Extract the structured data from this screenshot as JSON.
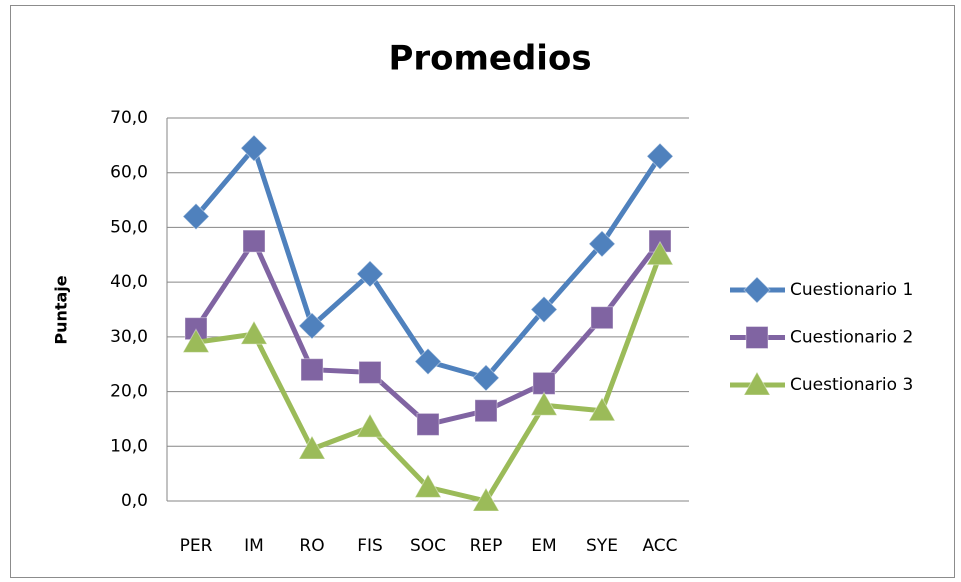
{
  "chart_data": {
    "type": "line",
    "title": "Promedios",
    "y_label": "Puntaje",
    "categories": [
      "PER",
      "IM",
      "RO",
      "FIS",
      "SOC",
      "REP",
      "EM",
      "SYE",
      "ACC"
    ],
    "series": [
      {
        "name": "Cuestionario 1",
        "color": "#4f81bd",
        "marker": "diamond",
        "values": [
          52,
          64.5,
          32,
          41.5,
          25.5,
          22.5,
          35,
          47,
          63
        ]
      },
      {
        "name": "Cuestionario 2",
        "color": "#8064a2",
        "marker": "square",
        "values": [
          31.5,
          47.5,
          24,
          23.5,
          14,
          16.5,
          21.5,
          33.5,
          47.5
        ]
      },
      {
        "name": "Cuestionario 3",
        "color": "#9bbb59",
        "marker": "triangle",
        "values": [
          29,
          30.5,
          9.5,
          13.5,
          2.5,
          0,
          17.5,
          16.5,
          45
        ]
      }
    ],
    "ylim": [
      0,
      70
    ],
    "yticks": [
      {
        "value": 0,
        "label": "0,0"
      },
      {
        "value": 10,
        "label": "10,0"
      },
      {
        "value": 20,
        "label": "20,0"
      },
      {
        "value": 30,
        "label": "30,0"
      },
      {
        "value": 40,
        "label": "40,0"
      },
      {
        "value": 50,
        "label": "50,0"
      },
      {
        "value": 60,
        "label": "60,0"
      },
      {
        "value": 70,
        "label": "70,0"
      }
    ],
    "grid": true,
    "legend": "right"
  }
}
